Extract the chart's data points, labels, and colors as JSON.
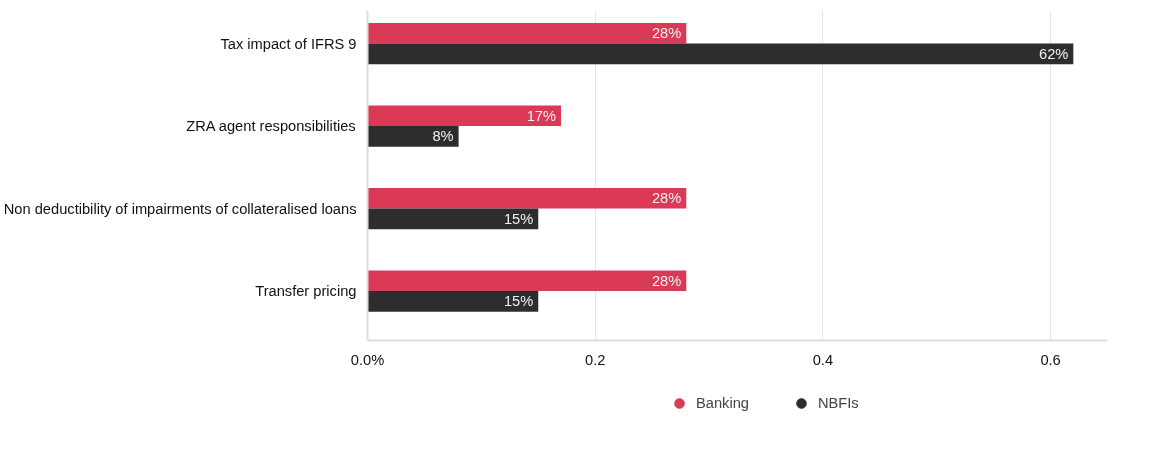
{
  "chart_data": {
    "type": "bar",
    "orientation": "horizontal",
    "categories": [
      "Tax impact of IFRS 9",
      "ZRA agent responsibilities",
      "Non deductibility of impairments of collateralised loans",
      "Transfer pricing"
    ],
    "series": [
      {
        "name": "Banking",
        "color": "#da3a56",
        "values": [
          0.28,
          0.17,
          0.28,
          0.28
        ],
        "value_labels": [
          "28%",
          "17%",
          "28%",
          "28%"
        ]
      },
      {
        "name": "NBFIs",
        "color": "#2d2d2d",
        "values": [
          0.62,
          0.08,
          0.15,
          0.15
        ],
        "value_labels": [
          "62%",
          "8%",
          "15%",
          "15%"
        ]
      }
    ],
    "xlim": [
      0,
      0.65
    ],
    "xticks": [
      {
        "value": 0,
        "label": "0.0%"
      },
      0.2,
      0.4,
      0.6
    ],
    "grid": "x",
    "legend": "bottom"
  }
}
